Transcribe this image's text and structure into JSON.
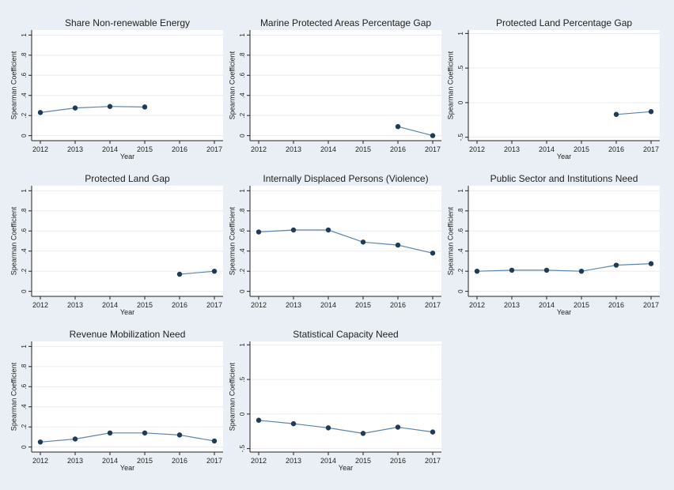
{
  "figure": {
    "colors": {
      "background": "#e9eff4",
      "plot_bg": "#ffffff",
      "grid": "#e6ecf1",
      "series": "#1f3b57",
      "line": "#5a86ad",
      "axis": "#222222",
      "text": "#222222"
    }
  },
  "chart_data": [
    {
      "type": "line",
      "title": "Share Non-renewable Energy",
      "xlabel": "Year",
      "ylabel": "Spearman Coefficient",
      "x": [
        2012,
        2013,
        2014,
        2015,
        2016,
        2017
      ],
      "x_tick_labels": [
        "2012",
        "2013",
        "2014",
        "2015",
        "2016",
        "2017"
      ],
      "y_ticks": [
        0,
        0.2,
        0.4,
        0.6,
        0.8,
        1
      ],
      "y_tick_labels": [
        "0",
        ".2",
        ".4",
        ".6",
        ".8",
        "1"
      ],
      "ylim": [
        -0.05,
        1.05
      ],
      "grid": true,
      "series": [
        {
          "values": [
            0.23,
            0.275,
            0.29,
            0.285,
            null,
            null
          ]
        }
      ]
    },
    {
      "type": "line",
      "title": "Marine Protected Areas Percentage Gap",
      "xlabel": "",
      "ylabel": "Spearman Coefficient",
      "x": [
        2012,
        2013,
        2014,
        2015,
        2016,
        2017
      ],
      "x_tick_labels": [
        "2012",
        "2013",
        "2014",
        "2015",
        "2016",
        "2017"
      ],
      "y_ticks": [
        0,
        0.2,
        0.4,
        0.6,
        0.8,
        1
      ],
      "y_tick_labels": [
        "0",
        ".2",
        ".4",
        ".6",
        ".8",
        "1"
      ],
      "ylim": [
        -0.05,
        1.05
      ],
      "grid": true,
      "series": [
        {
          "values": [
            null,
            null,
            null,
            null,
            0.09,
            0.0
          ]
        }
      ]
    },
    {
      "type": "line",
      "title": "Protected Land Percentage Gap",
      "xlabel": "Year",
      "ylabel": "Spearman Coefficient",
      "x": [
        2012,
        2013,
        2014,
        2015,
        2016,
        2017
      ],
      "x_tick_labels": [
        "2012",
        "2013",
        "2014",
        "2015",
        "2016",
        "2017"
      ],
      "y_ticks": [
        -0.5,
        0,
        0.5,
        1
      ],
      "y_tick_labels": [
        "-.5",
        "0",
        ".5",
        "1"
      ],
      "ylim": [
        -0.55,
        1.05
      ],
      "grid": true,
      "series": [
        {
          "values": [
            null,
            null,
            null,
            null,
            -0.17,
            -0.13
          ]
        }
      ]
    },
    {
      "type": "line",
      "title": "Protected Land Gap",
      "xlabel": "Year",
      "ylabel": "Spearman Coefficient",
      "x": [
        2012,
        2013,
        2014,
        2015,
        2016,
        2017
      ],
      "x_tick_labels": [
        "2012",
        "2013",
        "2014",
        "2015",
        "2016",
        "2017"
      ],
      "y_ticks": [
        0,
        0.2,
        0.4,
        0.6,
        0.8,
        1
      ],
      "y_tick_labels": [
        "0",
        ".2",
        ".4",
        ".6",
        ".8",
        "1"
      ],
      "ylim": [
        -0.05,
        1.05
      ],
      "grid": true,
      "series": [
        {
          "values": [
            null,
            null,
            null,
            null,
            0.17,
            0.2
          ]
        }
      ]
    },
    {
      "type": "line",
      "title": "Internally Displaced Persons (Violence)",
      "xlabel": "",
      "ylabel": "Spearman Coefficient",
      "x": [
        2012,
        2013,
        2014,
        2015,
        2016,
        2017
      ],
      "x_tick_labels": [
        "2012",
        "2013",
        "2014",
        "2015",
        "2016",
        "2017"
      ],
      "y_ticks": [
        0,
        0.2,
        0.4,
        0.6,
        0.8,
        1
      ],
      "y_tick_labels": [
        "0",
        ".2",
        ".4",
        ".6",
        ".8",
        "1"
      ],
      "ylim": [
        -0.05,
        1.05
      ],
      "grid": true,
      "series": [
        {
          "values": [
            0.59,
            0.61,
            0.61,
            0.49,
            0.46,
            0.38
          ]
        }
      ]
    },
    {
      "type": "line",
      "title": "Public Sector and Institutions Need",
      "xlabel": "Year",
      "ylabel": "Spearman Coefficient",
      "x": [
        2012,
        2013,
        2014,
        2015,
        2016,
        2017
      ],
      "x_tick_labels": [
        "2012",
        "2013",
        "2014",
        "2015",
        "2016",
        "2017"
      ],
      "y_ticks": [
        0,
        0.2,
        0.4,
        0.6,
        0.8,
        1
      ],
      "y_tick_labels": [
        "0",
        ".2",
        ".4",
        ".6",
        ".8",
        "1"
      ],
      "ylim": [
        -0.05,
        1.05
      ],
      "grid": true,
      "series": [
        {
          "values": [
            0.2,
            0.21,
            0.21,
            0.2,
            0.26,
            0.275
          ]
        }
      ]
    },
    {
      "type": "line",
      "title": "Revenue Mobilization Need",
      "xlabel": "Year",
      "ylabel": "Spearman Coefficient",
      "x": [
        2012,
        2013,
        2014,
        2015,
        2016,
        2017
      ],
      "x_tick_labels": [
        "2012",
        "2013",
        "2014",
        "2015",
        "2016",
        "2017"
      ],
      "y_ticks": [
        0,
        0.2,
        0.4,
        0.6,
        0.8,
        1
      ],
      "y_tick_labels": [
        "0",
        ".2",
        ".4",
        ".6",
        ".8",
        "1"
      ],
      "ylim": [
        -0.05,
        1.05
      ],
      "grid": true,
      "series": [
        {
          "values": [
            0.05,
            0.08,
            0.14,
            0.14,
            0.12,
            0.06
          ]
        }
      ]
    },
    {
      "type": "line",
      "title": "Statistical Capacity Need",
      "xlabel": "Year",
      "ylabel": "Spearman Coefficient",
      "x": [
        2012,
        2013,
        2014,
        2015,
        2016,
        2017
      ],
      "x_tick_labels": [
        "2012",
        "2013",
        "2014",
        "2015",
        "2016",
        "2017"
      ],
      "y_ticks": [
        -0.5,
        0,
        0.5,
        1
      ],
      "y_tick_labels": [
        "-.5",
        "0",
        ".5",
        "1"
      ],
      "ylim": [
        -0.55,
        1.05
      ],
      "grid": true,
      "series": [
        {
          "values": [
            -0.09,
            -0.14,
            -0.2,
            -0.28,
            -0.19,
            -0.26
          ]
        }
      ]
    }
  ]
}
